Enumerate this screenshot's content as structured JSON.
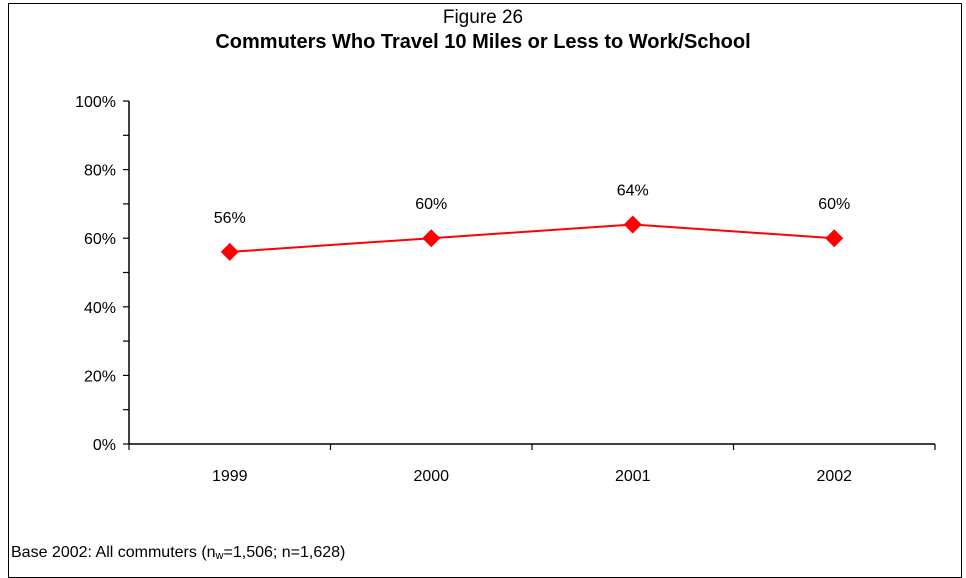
{
  "figure_label": "Figure 26",
  "footnote": {
    "prefix": "Base 2002:  All commuters (n",
    "sub": "w",
    "suffix": "=1,506; n=1,628)"
  },
  "colors": {
    "series": "#ff0000"
  },
  "chart_data": {
    "type": "line",
    "title": "Commuters Who Travel 10 Miles or Less to Work/School",
    "xlabel": "",
    "ylabel": "",
    "categories": [
      "1999",
      "2000",
      "2001",
      "2002"
    ],
    "series": [
      {
        "values": [
          56,
          60,
          64,
          60
        ],
        "labels": [
          "56%",
          "60%",
          "64%",
          "60%"
        ]
      }
    ],
    "ylim": [
      0,
      100
    ],
    "yticks": [
      0,
      20,
      40,
      60,
      80,
      100
    ],
    "ytick_labels": [
      "0%",
      "20%",
      "40%",
      "60%",
      "80%",
      "100%"
    ],
    "marker": "diamond",
    "grid": false,
    "legend": "none"
  }
}
